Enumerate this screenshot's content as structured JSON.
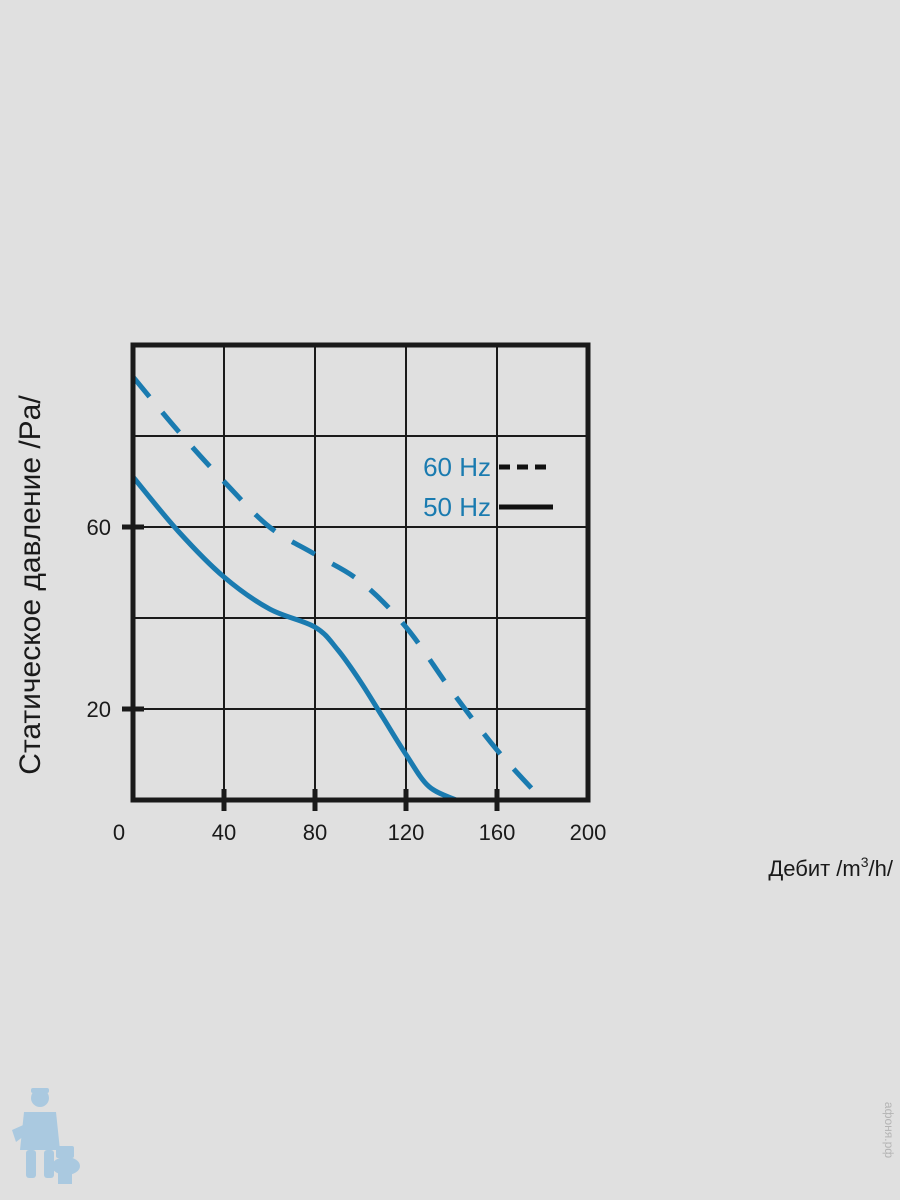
{
  "chart_data": {
    "type": "line",
    "xlabel_prefix": "Дебит /m",
    "xlabel_sup": "3",
    "xlabel_suffix": "/h/",
    "ylabel": "Статическое давление /Pa/",
    "xlim": [
      0,
      200
    ],
    "ylim": [
      0,
      100
    ],
    "x_ticks": [
      "0",
      "40",
      "80",
      "120",
      "160",
      "200"
    ],
    "y_ticks": [
      {
        "value": 20,
        "label": "20"
      },
      {
        "value": 60,
        "label": "60"
      }
    ],
    "grid": true,
    "legend_position": "top-right",
    "series": [
      {
        "name": "60 Hz",
        "line_style": "dashed",
        "color": "#1a7bb0",
        "legend_line_color": "#111111",
        "points": [
          [
            0,
            93
          ],
          [
            20,
            81
          ],
          [
            40,
            70
          ],
          [
            60,
            60
          ],
          [
            80,
            54
          ],
          [
            100,
            48
          ],
          [
            120,
            38
          ],
          [
            140,
            24
          ],
          [
            160,
            11
          ],
          [
            180,
            0
          ]
        ]
      },
      {
        "name": "50 Hz",
        "line_style": "solid",
        "color": "#1a7bb0",
        "legend_line_color": "#111111",
        "points": [
          [
            0,
            71
          ],
          [
            20,
            59
          ],
          [
            40,
            49
          ],
          [
            60,
            42
          ],
          [
            80,
            38
          ],
          [
            90,
            33
          ],
          [
            100,
            26
          ],
          [
            110,
            18
          ],
          [
            120,
            10
          ],
          [
            130,
            3
          ],
          [
            142,
            0
          ]
        ]
      }
    ]
  },
  "watermark_text": "афоня.рф",
  "logo_icon": "plumber-mascot-icon"
}
